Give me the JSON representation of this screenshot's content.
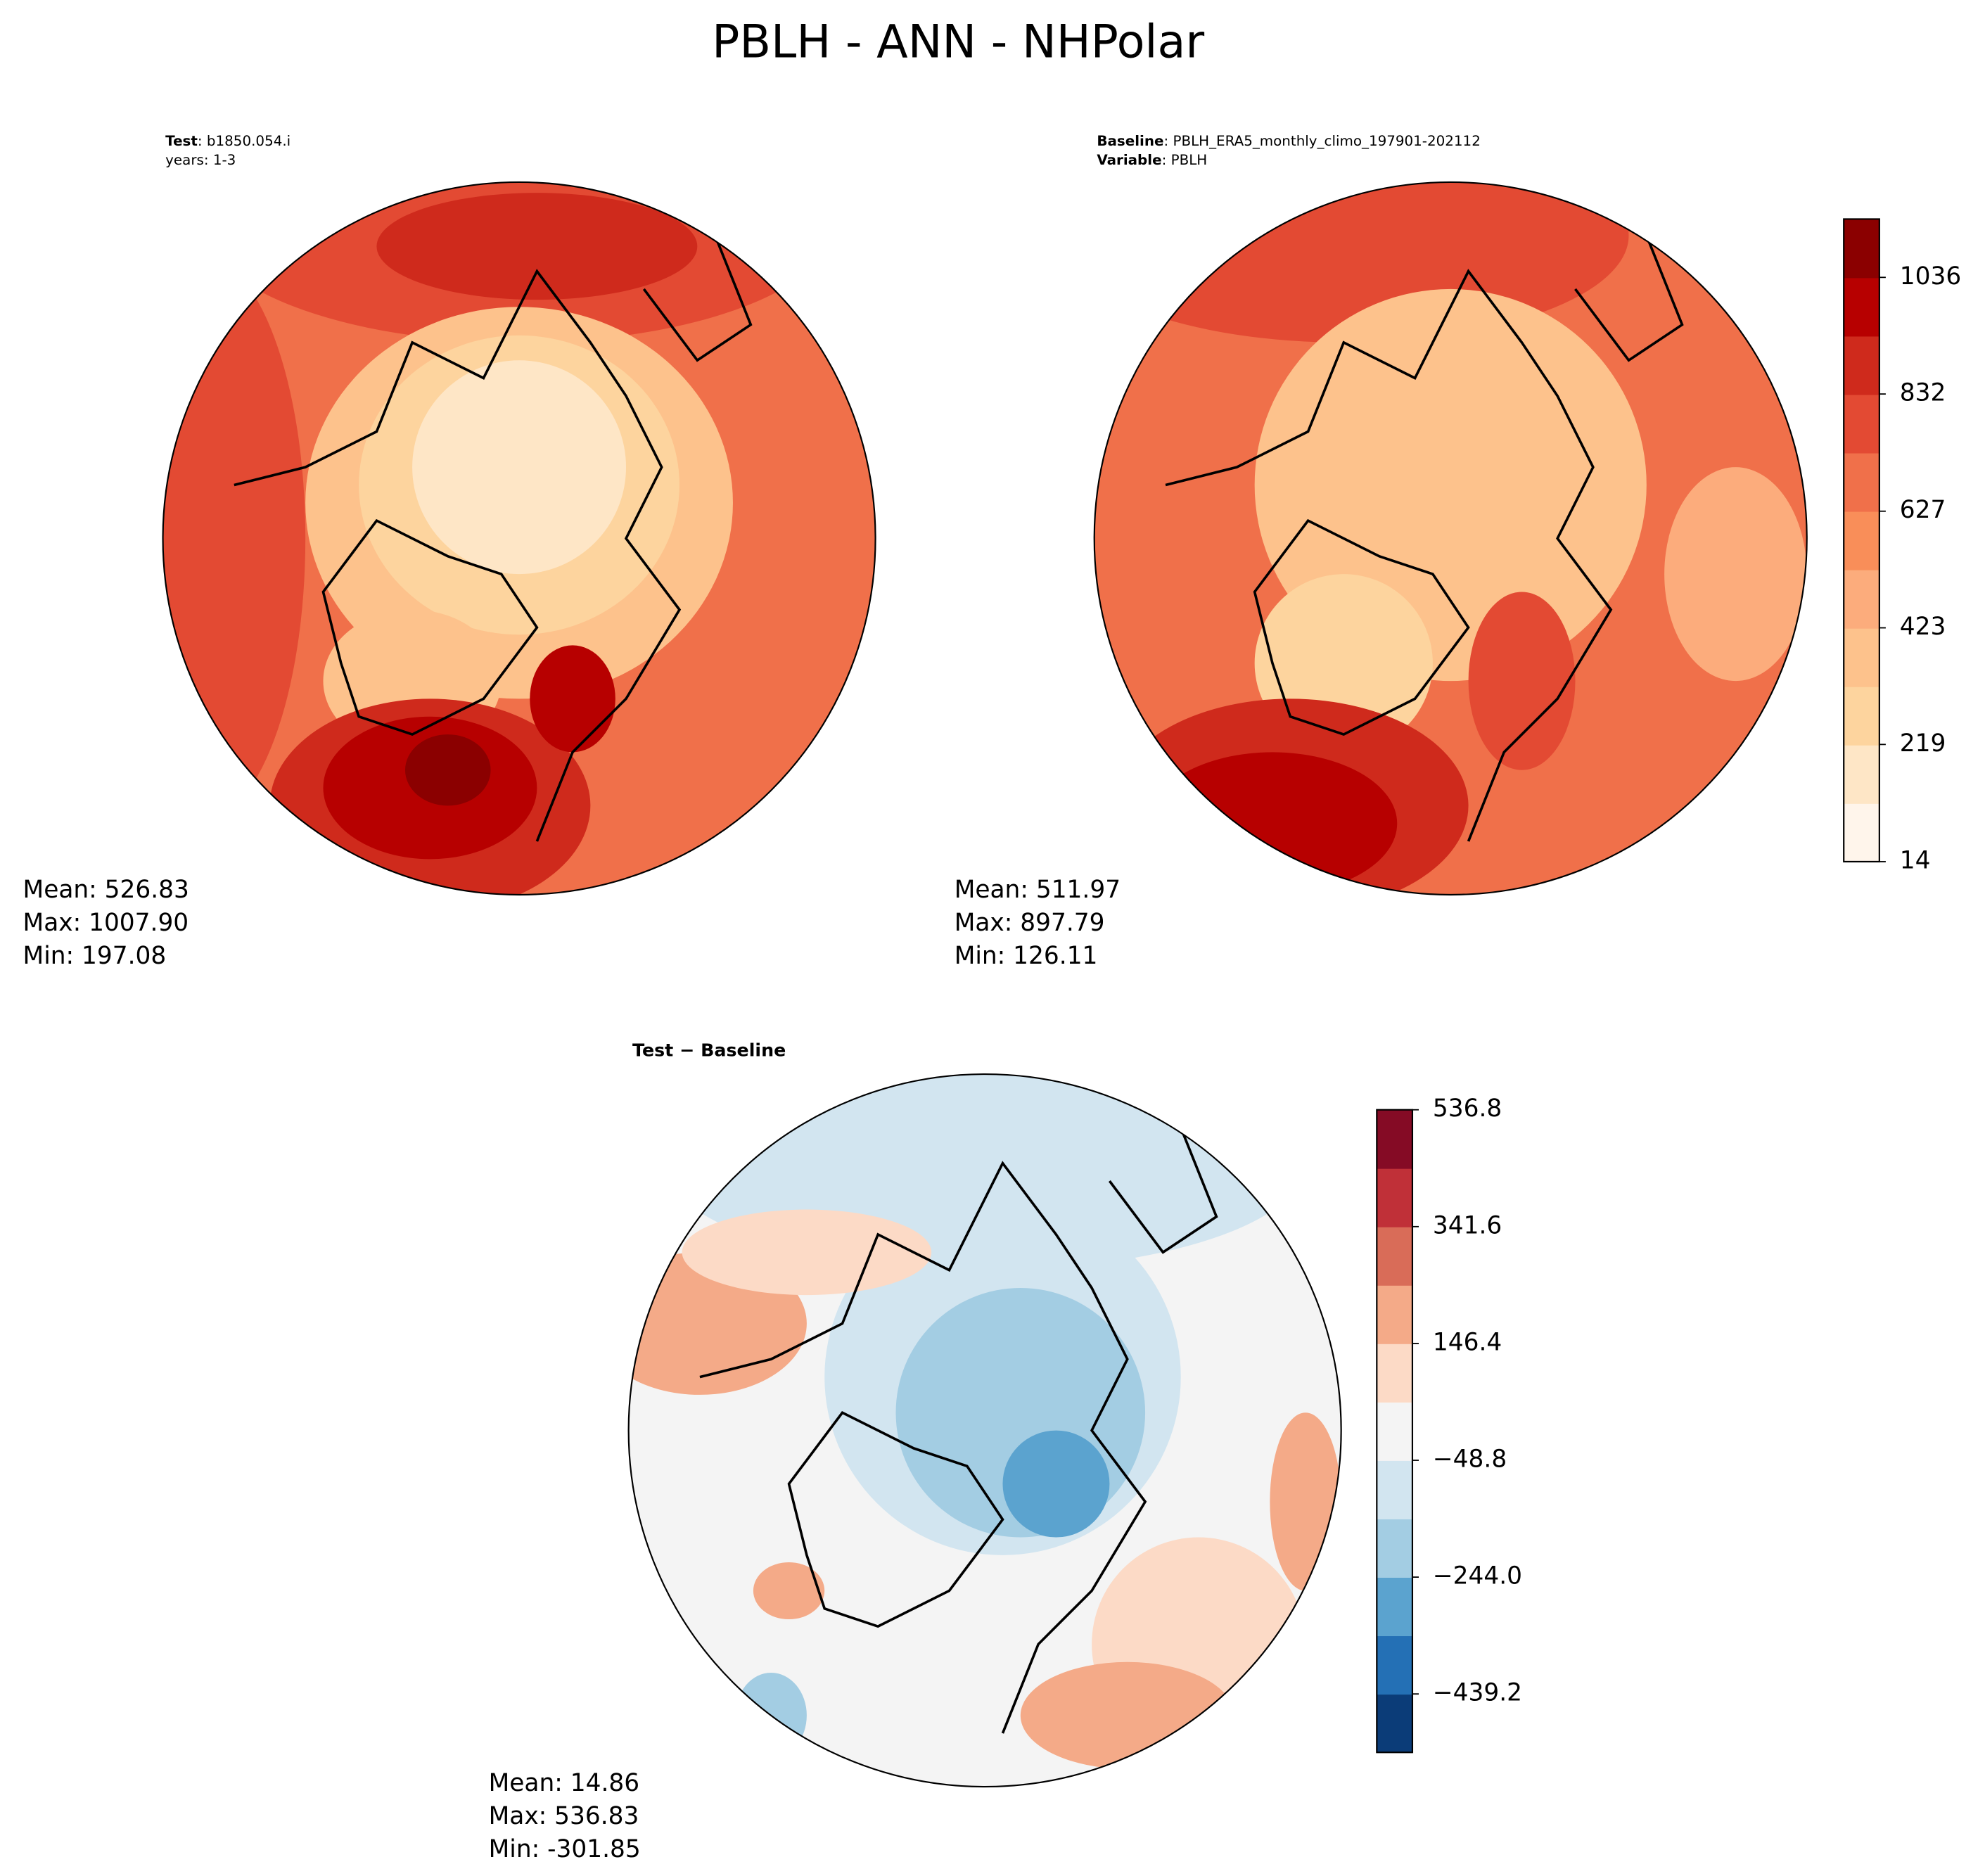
{
  "title": "PBLH - ANN - NHPolar",
  "panels": [
    {
      "header": [
        {
          "bold": "Test",
          "text": ": b1850.054.i"
        },
        {
          "text": "years: 1-3"
        }
      ],
      "stats": [
        "Mean: 526.83",
        "Max: 1007.90",
        "Min: 197.08"
      ]
    },
    {
      "header": [
        {
          "bold": "Baseline",
          "text": ": PBLH_ERA5_monthly_climo_197901-202112"
        },
        {
          "bold": "Variable",
          "text": ": PBLH"
        }
      ],
      "stats": [
        "Mean: 511.97",
        "Max: 897.79",
        "Min: 126.11"
      ]
    },
    {
      "header": [
        {
          "bold": "Test − Baseline"
        }
      ],
      "stats": [
        "Mean: 14.86",
        "Max: 536.83",
        "Min: -301.85"
      ]
    }
  ],
  "colorbars": [
    {
      "ylim": [
        14,
        1138
      ],
      "ticks": [
        14,
        219,
        423,
        627,
        832,
        1036
      ],
      "colors": [
        "#fff5eb",
        "#fee6c6",
        "#fdd49e",
        "#fdc28c",
        "#fcac7c",
        "#f98e59",
        "#f0704a",
        "#e34a33",
        "#cf2a1c",
        "#b70000",
        "#8b0000"
      ]
    },
    {
      "ylim": [
        -536.8,
        536.8
      ],
      "ticks": [
        {
          "value": -439.2,
          "label": "−439.2"
        },
        {
          "value": -244.0,
          "label": "−244.0"
        },
        {
          "value": -48.8,
          "label": "−48.8"
        },
        146.4,
        341.6,
        536.8
      ],
      "colors": [
        "#0b3c78",
        "#2470b5",
        "#5ba3cf",
        "#a3cde3",
        "#d2e5f0",
        "#f4f4f4",
        "#fcdac6",
        "#f4aa88",
        "#d96c58",
        "#c03038",
        "#850b25"
      ]
    }
  ]
}
